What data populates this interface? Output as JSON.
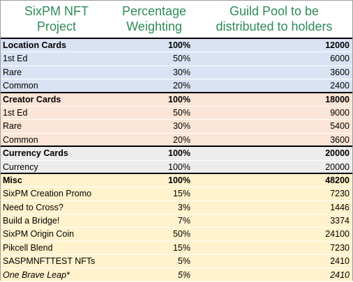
{
  "header": {
    "col1_line1": "SixPM NFT",
    "col1_line2": "Project",
    "col2_line1": "Percentage",
    "col2_line2": "Weighting",
    "col3_line1": "Guild Pool to be",
    "col3_line2": "distributed to holders"
  },
  "colors": {
    "header_text": "#2e8b57",
    "location_bg": "#dae3f3",
    "creator_bg": "#fbe5d6",
    "currency_bg": "#ededed",
    "misc_bg": "#fff2cc"
  },
  "groups": [
    {
      "rows": [
        {
          "project": "Location Cards",
          "weight": "100%",
          "pool": "12000",
          "bold": true
        },
        {
          "project": "1st Ed",
          "weight": "50%",
          "pool": "6000"
        },
        {
          "project": "Rare",
          "weight": "30%",
          "pool": "3600"
        },
        {
          "project": "Common",
          "weight": "20%",
          "pool": "2400"
        }
      ]
    },
    {
      "rows": [
        {
          "project": "Creator Cards",
          "weight": "100%",
          "pool": "18000",
          "bold": true
        },
        {
          "project": "1st Ed",
          "weight": "50%",
          "pool": "9000"
        },
        {
          "project": "Rare",
          "weight": "30%",
          "pool": "5400"
        },
        {
          "project": "Common",
          "weight": "20%",
          "pool": "3600"
        }
      ]
    },
    {
      "rows": [
        {
          "project": "Currency Cards",
          "weight": "100%",
          "pool": "20000",
          "bold": true
        },
        {
          "project": "Currency",
          "weight": "100%",
          "pool": "20000"
        }
      ]
    },
    {
      "rows": [
        {
          "project": "Misc",
          "weight": "100%",
          "pool": "48200",
          "bold": true
        },
        {
          "project": "SixPM Creation Promo",
          "weight": "15%",
          "pool": "7230"
        },
        {
          "project": "Need to Cross?",
          "weight": "3%",
          "pool": "1446"
        },
        {
          "project": "Build a Bridge!",
          "weight": "7%",
          "pool": "3374"
        },
        {
          "project": "SixPM Origin Coin",
          "weight": "50%",
          "pool": "24100"
        },
        {
          "project": "Pikcell Blend",
          "weight": "15%",
          "pool": "7230"
        },
        {
          "project": "SASPMNFTTEST NFTs",
          "weight": "5%",
          "pool": "2410"
        },
        {
          "project": "One Brave Leap*",
          "weight": "5%",
          "pool": "2410",
          "italic": true
        }
      ]
    }
  ]
}
